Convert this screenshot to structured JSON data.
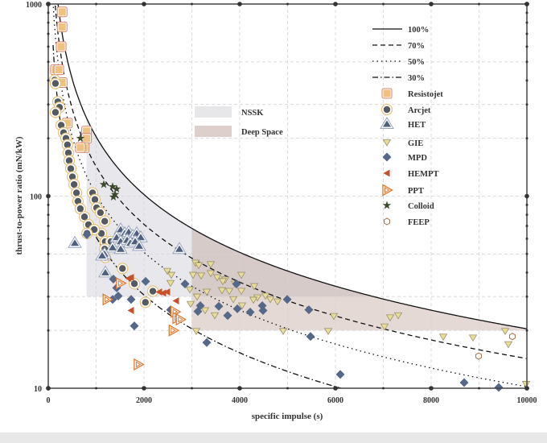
{
  "chart_data": {
    "type": "scatter",
    "xlabel": "specific impulse (s)",
    "ylabel": "thrust-to-power ratio (mN/kW)",
    "xlim": [
      0,
      10000
    ],
    "ylim": [
      10,
      1000
    ],
    "yscale": "log",
    "x_ticks": [
      "0",
      "2000",
      "4000",
      "6000",
      "8000",
      "10000"
    ],
    "y_ticks": [
      "10",
      "100",
      "1000"
    ],
    "grid": true,
    "legend_placement": "top-right",
    "efficiency_lines": [
      {
        "name": "100%",
        "efficiency": 1.0,
        "style": "solid"
      },
      {
        "name": "70%",
        "efficiency": 0.7,
        "style": "dashed"
      },
      {
        "name": "50%",
        "efficiency": 0.5,
        "style": "dotted"
      },
      {
        "name": "30%",
        "efficiency": 0.3,
        "style": "dashdot"
      }
    ],
    "regions": [
      {
        "name": "NSSK",
        "isp_min": 800,
        "tp_min": 30,
        "upper": "100%",
        "color": "#d9d9de"
      },
      {
        "name": "Deep Space",
        "isp_min": 3000,
        "tp_min": 20,
        "upper": "100%",
        "color": "#cdbab4"
      }
    ],
    "series": [
      {
        "name": "Resistojet",
        "marker": "square",
        "color": "#f0c27e",
        "edge": "#d9826a",
        "points": [
          [
            290,
            910
          ],
          [
            290,
            760
          ],
          [
            270,
            600
          ],
          [
            150,
            455
          ],
          [
            220,
            455
          ],
          [
            290,
            390
          ],
          [
            400,
            240
          ],
          [
            800,
            218
          ],
          [
            800,
            200
          ],
          [
            750,
            179
          ],
          [
            670,
            179
          ]
        ]
      },
      {
        "name": "Arcjet",
        "marker": "circle",
        "color": "#555a60",
        "edge": "#e5c27a",
        "points": [
          [
            135,
            402
          ],
          [
            150,
            386
          ],
          [
            200,
            310
          ],
          [
            235,
            290
          ],
          [
            150,
            273
          ],
          [
            270,
            234
          ],
          [
            320,
            214
          ],
          [
            370,
            200
          ],
          [
            400,
            185
          ],
          [
            420,
            168
          ],
          [
            437,
            153
          ],
          [
            470,
            139
          ],
          [
            505,
            126
          ],
          [
            540,
            115
          ],
          [
            590,
            104
          ],
          [
            620,
            94
          ],
          [
            670,
            86
          ],
          [
            757,
            78
          ],
          [
            840,
            71
          ],
          [
            925,
            104
          ],
          [
            975,
            96
          ],
          [
            1010,
            87
          ],
          [
            1090,
            82
          ],
          [
            1180,
            74
          ],
          [
            1110,
            64
          ],
          [
            960,
            67
          ],
          [
            810,
            64
          ],
          [
            1190,
            58
          ],
          [
            1310,
            58
          ],
          [
            1180,
            53
          ],
          [
            1190,
            48
          ],
          [
            1560,
            58
          ],
          [
            1550,
            42
          ],
          [
            1800,
            35
          ],
          [
            2185,
            32
          ],
          [
            2030,
            28
          ]
        ]
      },
      {
        "name": "HET",
        "marker": "triangle-up",
        "color": "#4e5f80",
        "edge": "#9aa3c0",
        "points": [
          [
            1513,
            67
          ],
          [
            1597,
            64
          ],
          [
            1681,
            65
          ],
          [
            1765,
            62
          ],
          [
            1849,
            64
          ],
          [
            1933,
            61
          ],
          [
            1429,
            61
          ],
          [
            1513,
            58
          ],
          [
            1647,
            59
          ],
          [
            1714,
            57
          ],
          [
            1345,
            54
          ],
          [
            1176,
            50
          ],
          [
            1126,
            49
          ],
          [
            1513,
            53
          ],
          [
            1815,
            58
          ],
          [
            1899,
            55
          ],
          [
            555,
            57
          ],
          [
            1193,
            40
          ],
          [
            2740,
            53
          ]
        ]
      },
      {
        "name": "GIE",
        "marker": "triangle-down",
        "color": "#e9dd9c",
        "edge": "#9a8f6a",
        "points": [
          [
            3076,
            44.9
          ],
          [
            3395,
            44.1
          ],
          [
            3025,
            38.8
          ],
          [
            3193,
            38.5
          ],
          [
            3395,
            39.6
          ],
          [
            3529,
            37.7
          ],
          [
            3697,
            36.7
          ],
          [
            3899,
            34.9
          ],
          [
            4034,
            38.8
          ],
          [
            4303,
            33.9
          ],
          [
            2958,
            32.6
          ],
          [
            3311,
            31.7
          ],
          [
            3630,
            32.3
          ],
          [
            4034,
            32.0
          ],
          [
            4370,
            29.6
          ],
          [
            4538,
            30.2
          ],
          [
            3109,
            29.9
          ],
          [
            3866,
            29.0
          ],
          [
            2975,
            27.4
          ],
          [
            3277,
            25.4
          ],
          [
            3479,
            23.9
          ],
          [
            4050,
            26.9
          ],
          [
            4639,
            29.0
          ],
          [
            4790,
            28.2
          ],
          [
            4286,
            28.8
          ],
          [
            2487,
            40.7
          ],
          [
            2571,
            38.8
          ],
          [
            2555,
            35.2
          ],
          [
            3143,
            43.6
          ],
          [
            3092,
            19.8
          ],
          [
            4908,
            19.8
          ],
          [
            5849,
            19.8
          ],
          [
            5966,
            23.7
          ],
          [
            7143,
            23.3
          ],
          [
            7311,
            23.9
          ],
          [
            7025,
            20.9
          ],
          [
            8252,
            18.5
          ],
          [
            8874,
            18.3
          ],
          [
            9613,
            16.9
          ],
          [
            9546,
            19.8
          ],
          [
            9983,
            10.5
          ],
          [
            3647,
            36.0
          ],
          [
            3782,
            32.0
          ]
        ]
      },
      {
        "name": "MPD",
        "marker": "diamond",
        "color": "#56688a",
        "edge": "#56688a",
        "points": [
          [
            807,
            63
          ],
          [
            1361,
            37
          ],
          [
            1429,
            33.3
          ],
          [
            1462,
            30.2
          ],
          [
            1345,
            29.0
          ],
          [
            1731,
            29.0
          ],
          [
            2034,
            36.0
          ],
          [
            1798,
            21.1
          ],
          [
            2555,
            25.6
          ],
          [
            3311,
            17.3
          ],
          [
            2857,
            34.9
          ],
          [
            3126,
            25.1
          ],
          [
            3177,
            26.9
          ],
          [
            3563,
            26.7
          ],
          [
            3748,
            23.9
          ],
          [
            3933,
            34.9
          ],
          [
            3950,
            25.9
          ],
          [
            4219,
            24.9
          ],
          [
            4471,
            26.9
          ],
          [
            4487,
            25.4
          ],
          [
            4992,
            29.0
          ],
          [
            5445,
            25.6
          ],
          [
            5479,
            18.6
          ],
          [
            6101,
            11.8
          ],
          [
            8689,
            10.7
          ],
          [
            9412,
            10.1
          ]
        ]
      },
      {
        "name": "HEMPT",
        "marker": "triangle-left",
        "color": "#c8502a",
        "edge": "#c8502a",
        "points": [
          [
            1731,
            37.7
          ],
          [
            1681,
            37.3
          ],
          [
            2319,
            31.7
          ],
          [
            2403,
            31.3
          ],
          [
            2487,
            31.7
          ],
          [
            2672,
            28.5
          ],
          [
            1731,
            25.4
          ]
        ]
      },
      {
        "name": "PPT",
        "marker": "triangle-right-open",
        "color": "#ffffff",
        "edge": "#e07a30",
        "points": [
          [
            1510,
            35.2
          ],
          [
            1230,
            29.0
          ],
          [
            2650,
            25.0
          ],
          [
            2690,
            23.2
          ],
          [
            2760,
            22.8
          ],
          [
            2610,
            20.0
          ],
          [
            1880,
            13.3
          ]
        ]
      },
      {
        "name": "Colloid",
        "marker": "star",
        "color": "#3b4a2c",
        "edge": "#3b4a2c",
        "points": [
          [
            672,
            200
          ],
          [
            1160,
            115
          ],
          [
            1345,
            112
          ],
          [
            1429,
            109
          ],
          [
            1395,
            102
          ],
          [
            1361,
            99
          ]
        ]
      },
      {
        "name": "FEEP",
        "marker": "hexagon-open",
        "color": "#ffffff",
        "edge": "#a0704a",
        "points": [
          [
            9697,
            18.6
          ],
          [
            8992,
            14.7
          ]
        ]
      }
    ]
  }
}
